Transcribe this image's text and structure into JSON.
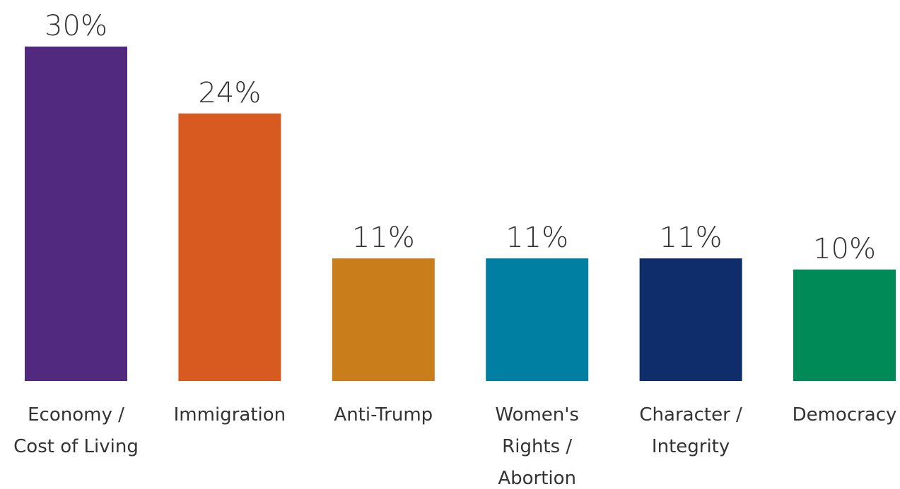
{
  "chart_data": {
    "type": "bar",
    "categories": [
      "Economy / Cost of Living",
      "Immigration",
      "Anti-Trump",
      "Women's Rights / Abortion",
      "Character / Integrity",
      "Democracy"
    ],
    "values": [
      30,
      24,
      11,
      11,
      11,
      10
    ],
    "value_labels": [
      "30%",
      "24%",
      "11%",
      "11%",
      "11%",
      "10%"
    ],
    "colors": [
      "#512a80",
      "#d95a21",
      "#c97d1b",
      "#007fa3",
      "#0f2d6b",
      "#008a58"
    ]
  }
}
